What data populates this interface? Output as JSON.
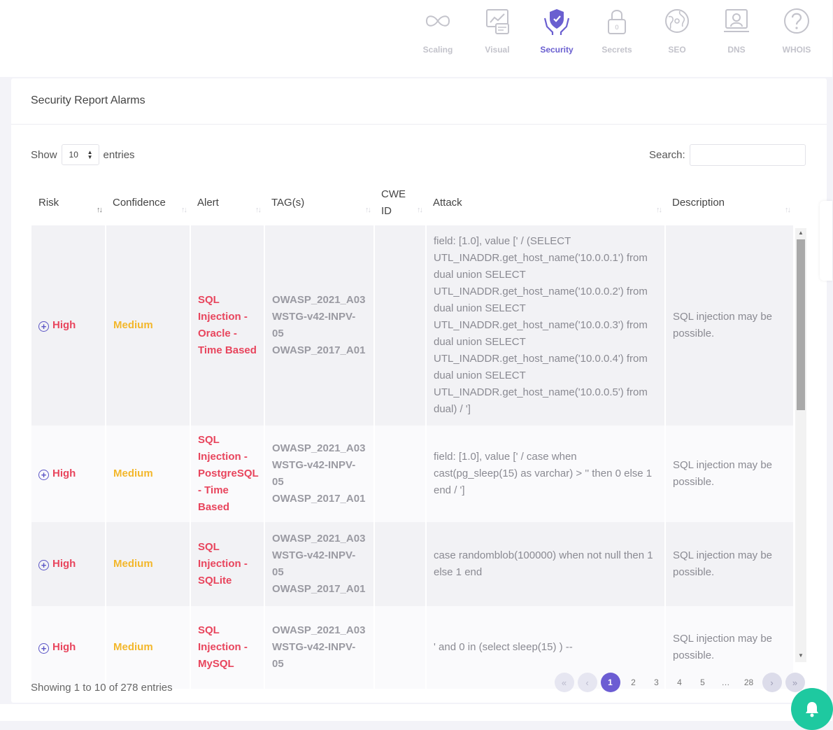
{
  "nav": {
    "tabs": [
      {
        "label": "Scaling",
        "icon": "infinity-icon",
        "active": false
      },
      {
        "label": "Visual",
        "icon": "visual-icon",
        "active": false
      },
      {
        "label": "Security",
        "icon": "shield-hands-icon",
        "active": true
      },
      {
        "label": "Secrets",
        "icon": "lock-icon",
        "active": false
      },
      {
        "label": "SEO",
        "icon": "globe-icon",
        "active": false
      },
      {
        "label": "DNS",
        "icon": "server-icon",
        "active": false
      },
      {
        "label": "WHOIS",
        "icon": "question-icon",
        "active": false
      }
    ],
    "active_color": "#6a5fd0",
    "inactive_color": "#c3c3cb"
  },
  "card": {
    "title": "Security Report Alarms"
  },
  "controls": {
    "show_label": "Show",
    "entries_label": "entries",
    "page_length": "10",
    "search_label": "Search:",
    "search_value": ""
  },
  "table": {
    "columns": [
      "Risk",
      "Confidence",
      "Alert",
      "TAG(s)",
      "CWE ID",
      "Attack",
      "Description"
    ],
    "rows": [
      {
        "risk": "High",
        "confidence": "Medium",
        "alert": "SQL Injection - Oracle - Time Based",
        "tags": [
          "OWASP_2021_A03",
          "WSTG-v42-INPV-05",
          "OWASP_2017_A01"
        ],
        "cwe": "",
        "attack": "field: [1.0], value [' / (SELECT UTL_INADDR.get_host_name('10.0.0.1') from dual union SELECT UTL_INADDR.get_host_name('10.0.0.2') from dual union SELECT UTL_INADDR.get_host_name('10.0.0.3') from dual union SELECT UTL_INADDR.get_host_name('10.0.0.4') from dual union SELECT UTL_INADDR.get_host_name('10.0.0.5') from dual) / ']",
        "description": "SQL injection may be possible."
      },
      {
        "risk": "High",
        "confidence": "Medium",
        "alert": "SQL Injection - PostgreSQL - Time Based",
        "tags": [
          "OWASP_2021_A03",
          "WSTG-v42-INPV-05",
          "OWASP_2017_A01"
        ],
        "cwe": "",
        "attack": "field: [1.0], value [' / case when cast(pg_sleep(15) as varchar) > '' then 0 else 1 end / ']",
        "description": "SQL injection may be possible."
      },
      {
        "risk": "High",
        "confidence": "Medium",
        "alert": "SQL Injection - SQLite",
        "tags": [
          "OWASP_2021_A03",
          "WSTG-v42-INPV-05",
          "OWASP_2017_A01"
        ],
        "cwe": "",
        "attack": "case randomblob(100000) when not null then 1 else 1 end",
        "description": "SQL injection may be possible."
      },
      {
        "risk": "High",
        "confidence": "Medium",
        "alert": "SQL Injection - MySQL",
        "tags": [
          "OWASP_2021_A03",
          "WSTG-v42-INPV-05"
        ],
        "cwe": "",
        "attack": "' and 0 in (select sleep(15) ) --",
        "description": "SQL injection may be possible."
      }
    ]
  },
  "footer": {
    "info": "Showing 1 to 10 of 278 entries",
    "pages": [
      "1",
      "2",
      "3",
      "4",
      "5",
      "…",
      "28"
    ],
    "current_page": "1"
  },
  "colors": {
    "risk_high": "#e8455d",
    "confidence_medium": "#f3b72b",
    "accent": "#6c5dd3",
    "notification_button": "#1ec9a0"
  }
}
